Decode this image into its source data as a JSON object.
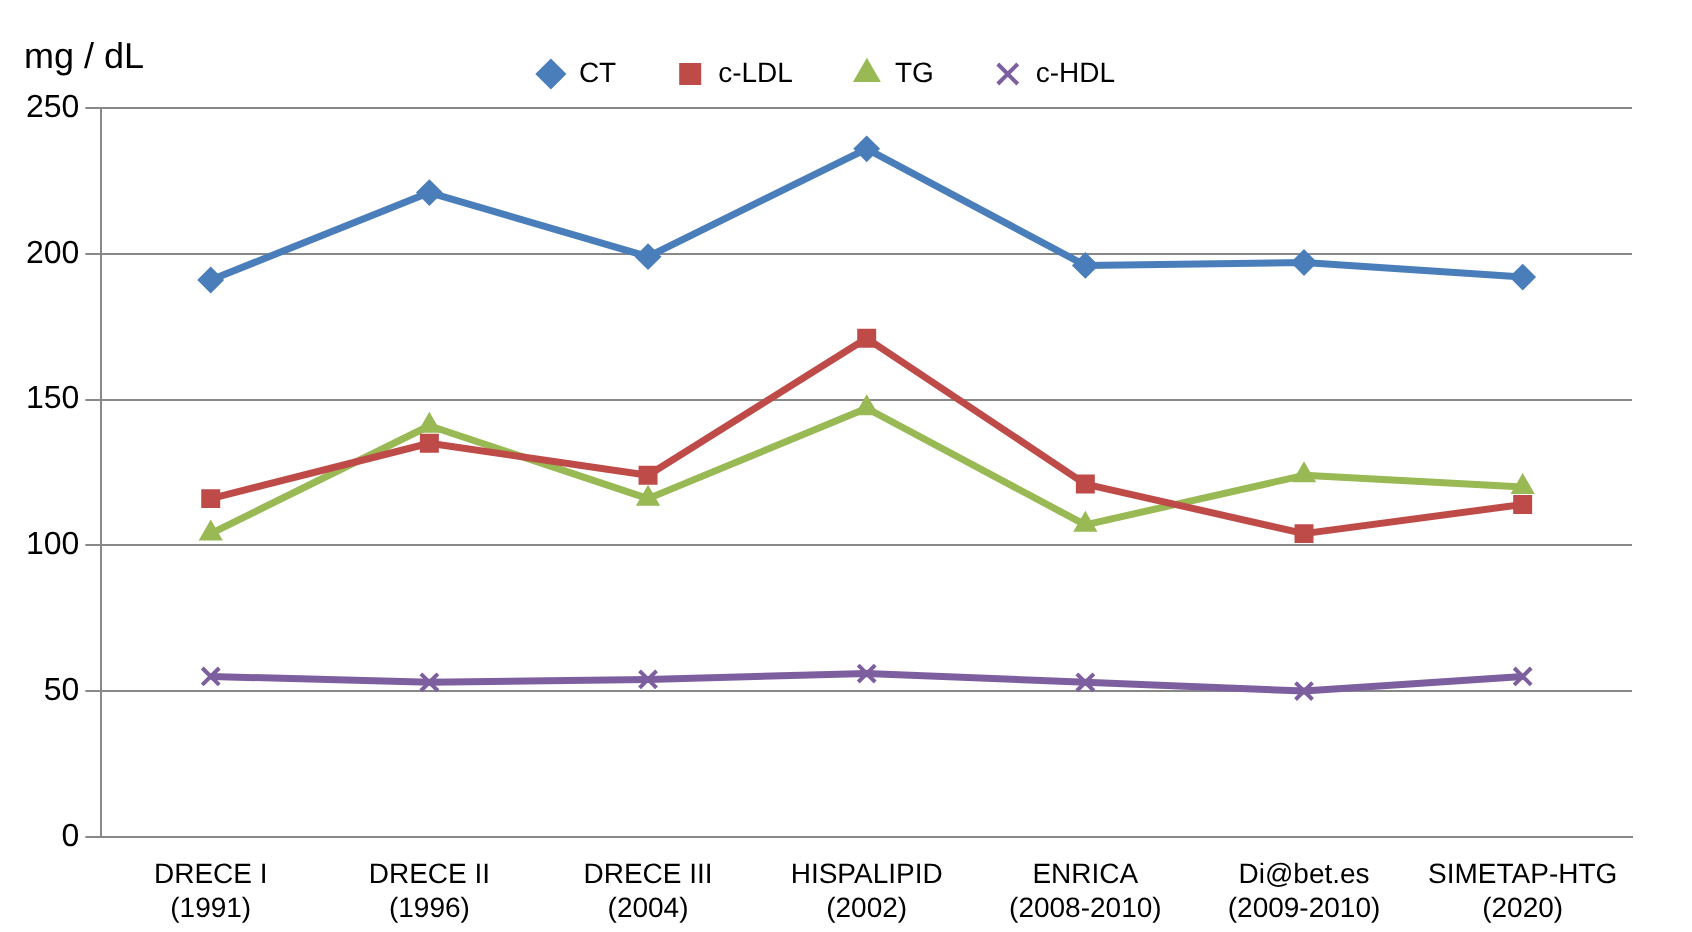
{
  "chart_data": {
    "type": "line",
    "ylabel": "mg / dL",
    "categories": [
      "DRECE I\n(1991)",
      "DRECE II\n(1996)",
      "DRECE III\n(2004)",
      "HISPALIPID\n(2002)",
      "ENRICA\n(2008-2010)",
      "Di@bet.es\n(2009-2010)",
      "SIMETAP-HTG\n(2020)"
    ],
    "series": [
      {
        "name": "CT",
        "color": "#4a7ebb",
        "marker": "diamond",
        "values": [
          191,
          221,
          199,
          236,
          196,
          197,
          192
        ]
      },
      {
        "name": "c-LDL",
        "color": "#be4b48",
        "marker": "square",
        "values": [
          116,
          135,
          124,
          171,
          121,
          104,
          114
        ]
      },
      {
        "name": "TG",
        "color": "#98b954",
        "marker": "triangle",
        "values": [
          104,
          141,
          116,
          147,
          107,
          124,
          120
        ]
      },
      {
        "name": "c-HDL",
        "color": "#7d5fa0",
        "marker": "cross",
        "values": [
          55,
          53,
          54,
          56,
          53,
          50,
          55
        ]
      }
    ],
    "ylim": [
      0,
      250
    ],
    "yticks": [
      0,
      50,
      100,
      150,
      200,
      250
    ],
    "grid": "y",
    "legend": "top",
    "line_style": "solid"
  }
}
